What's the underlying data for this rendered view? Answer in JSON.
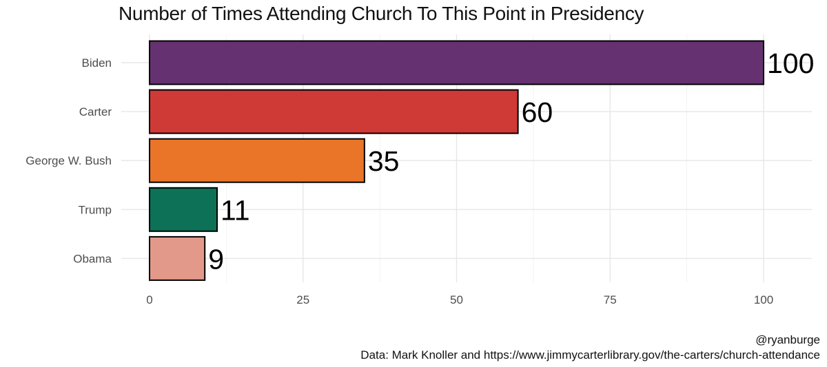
{
  "chart_data": {
    "type": "bar",
    "orientation": "horizontal",
    "title": "Number of Times Attending Church To This Point in Presidency",
    "categories": [
      "Biden",
      "Carter",
      "George W. Bush",
      "Trump",
      "Obama"
    ],
    "values": [
      100,
      60,
      35,
      11,
      9
    ],
    "colors": [
      "#663171",
      "#cf3a36",
      "#ea7428",
      "#0c7156",
      "#e2998a"
    ],
    "xlim": [
      0,
      100
    ],
    "xticks": [
      0,
      25,
      50,
      75,
      100
    ],
    "xlabel": "",
    "ylabel": "",
    "grid": true,
    "legend": "none"
  },
  "caption": {
    "handle": "@ryanburge",
    "source": "Data: Mark Knoller and https://www.jimmycarterlibrary.gov/the-carters/church-attendance"
  }
}
